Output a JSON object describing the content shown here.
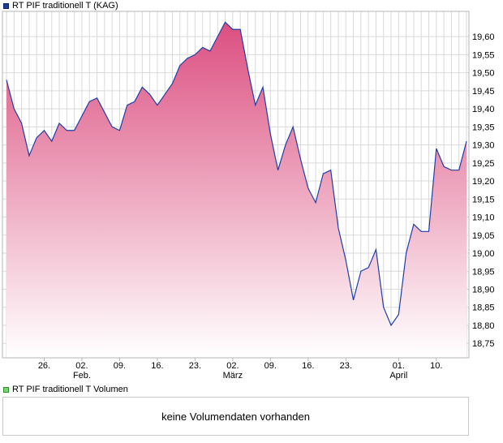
{
  "price_panel": {
    "series_name": "RT PIF traditionell T (KAG)"
  },
  "volume_panel": {
    "series_name": "RT PIF traditionell T Volumen",
    "message": "keine Volumendaten vorhanden"
  },
  "colors": {
    "line": "#1f3ea8",
    "fill_top": "#dc4f80",
    "fill_bottom": "#ffffff",
    "grid": "#d9d9d9",
    "border": "#b4b4b4"
  },
  "chart_data": {
    "type": "area",
    "title": "RT PIF traditionell T (KAG)",
    "series": [
      {
        "name": "RT PIF traditionell T (KAG)",
        "values": [
          19.48,
          19.4,
          19.36,
          19.27,
          19.32,
          19.34,
          19.31,
          19.36,
          19.34,
          19.34,
          19.38,
          19.42,
          19.43,
          19.39,
          19.35,
          19.34,
          19.41,
          19.42,
          19.46,
          19.44,
          19.41,
          19.44,
          19.47,
          19.52,
          19.54,
          19.55,
          19.57,
          19.56,
          19.6,
          19.64,
          19.62,
          19.62,
          19.51,
          19.41,
          19.46,
          19.33,
          19.23,
          19.3,
          19.35,
          19.26,
          19.18,
          19.14,
          19.22,
          19.23,
          19.07,
          18.98,
          18.87,
          18.95,
          18.96,
          19.01,
          18.85,
          18.8,
          18.83,
          19.0,
          19.08,
          19.06,
          19.06,
          19.29,
          19.24,
          19.23,
          19.23,
          19.31
        ]
      }
    ],
    "y_ticks": [
      "18,75",
      "18,80",
      "18,85",
      "18,90",
      "18,95",
      "19,00",
      "19,05",
      "19,10",
      "19,15",
      "19,20",
      "19,25",
      "19,30",
      "19,35",
      "19,40",
      "19,45",
      "19,50",
      "19,55",
      "19,60"
    ],
    "ylim": [
      18.71,
      19.67
    ],
    "x_ticks": [
      {
        "label": "26.",
        "sub": "",
        "index": 5
      },
      {
        "label": "02.",
        "sub": "Feb.",
        "index": 10
      },
      {
        "label": "09.",
        "sub": "",
        "index": 15
      },
      {
        "label": "16.",
        "sub": "",
        "index": 20
      },
      {
        "label": "23.",
        "sub": "",
        "index": 25
      },
      {
        "label": "02.",
        "sub": "März",
        "index": 30
      },
      {
        "label": "09.",
        "sub": "",
        "index": 35
      },
      {
        "label": "16.",
        "sub": "",
        "index": 40
      },
      {
        "label": "23.",
        "sub": "",
        "index": 45
      },
      {
        "label": "01.",
        "sub": "April",
        "index": 52
      },
      {
        "label": "10.",
        "sub": "",
        "index": 57
      }
    ],
    "grid": true
  }
}
